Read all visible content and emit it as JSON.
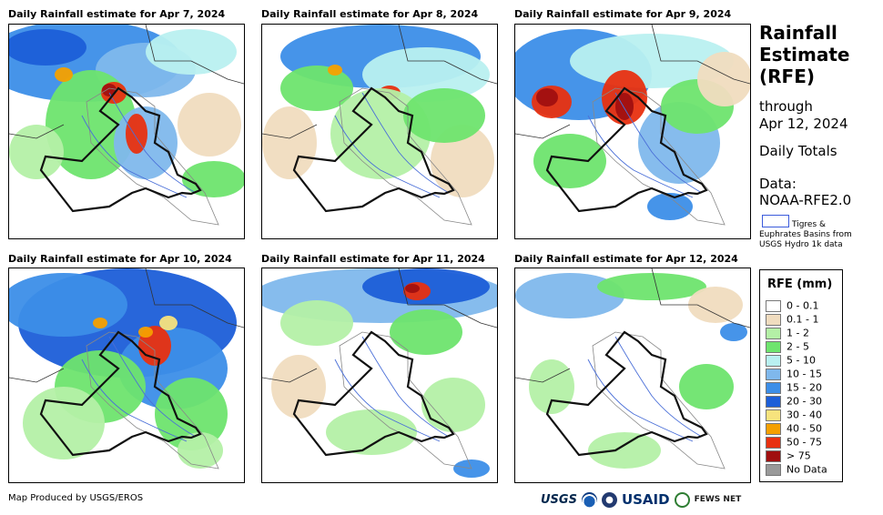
{
  "panels": [
    {
      "title": "Daily Rainfall estimate for Apr 7, 2024"
    },
    {
      "title": "Daily Rainfall estimate for Apr 8, 2024"
    },
    {
      "title": "Daily Rainfall estimate for Apr 9, 2024"
    },
    {
      "title": "Daily Rainfall estimate for Apr 10, 2024"
    },
    {
      "title": "Daily Rainfall estimate for Apr 11, 2024"
    },
    {
      "title": "Daily Rainfall estimate for Apr 12, 2024"
    }
  ],
  "side": {
    "title_lines": [
      "Rainfall",
      "Estimate",
      "(RFE)"
    ],
    "through": "through",
    "end_date": "Apr 12, 2024",
    "totals": "Daily Totals",
    "data_label": "Data:",
    "data_source": "NOAA-RFE2.0",
    "basin_lines": [
      "Tigres &",
      "Euphrates Basins from",
      "USGS Hydro 1k data"
    ]
  },
  "legend": {
    "title": "RFE (mm)",
    "items": [
      {
        "label": "0 - 0.1",
        "color": "#ffffff"
      },
      {
        "label": "0.1 - 1",
        "color": "#f0dcbf"
      },
      {
        "label": "1 - 2",
        "color": "#b4f0a6"
      },
      {
        "label": "2 - 5",
        "color": "#6ee46e"
      },
      {
        "label": "5 - 10",
        "color": "#b9f0f0"
      },
      {
        "label": "10 - 15",
        "color": "#7fb8ec"
      },
      {
        "label": "15 - 20",
        "color": "#3c8ee8"
      },
      {
        "label": "20 - 30",
        "color": "#1c5ed8"
      },
      {
        "label": "30 - 40",
        "color": "#f7e37d"
      },
      {
        "label": "40 - 50",
        "color": "#f5a000"
      },
      {
        "label": "50 - 75",
        "color": "#e83010"
      },
      {
        "label": "> 75",
        "color": "#a01010"
      },
      {
        "label": "No Data",
        "color": "#999999"
      }
    ]
  },
  "footer": {
    "credit": "Map Produced by USGS/EROS",
    "logos": [
      "USGS",
      "NOAA",
      "USAID",
      "FEWS NET"
    ]
  }
}
